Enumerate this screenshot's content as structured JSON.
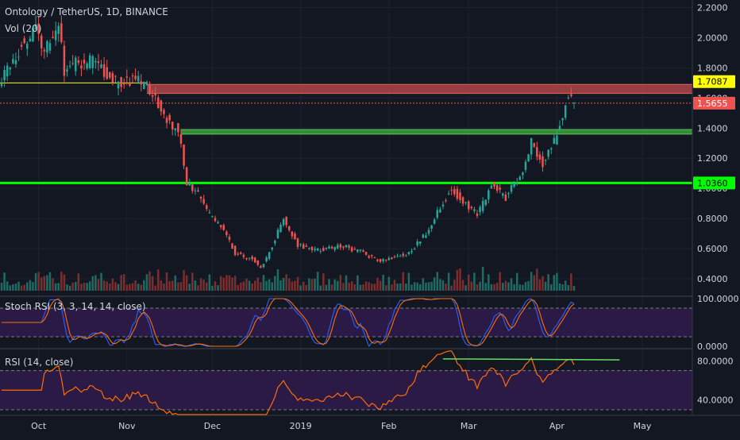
{
  "header": {
    "symbol_line": "Ontology / TetherUS, 1D, BINANCE",
    "volume_line": "Vol (20)"
  },
  "indicators": {
    "stoch_label": "Stoch RSI (3, 3, 14, 14, close)",
    "rsi_label": "RSI (14, close)"
  },
  "colors": {
    "bg": "#131722",
    "grid": "#1e2230",
    "axis_text": "#d1d4dc",
    "up": "#26a69a",
    "down": "#ef5350",
    "vol_up": "#1e6b64",
    "vol_down": "#7a2e2e",
    "resistance_band": "#b84a4a",
    "support_band": "#3e9e3e",
    "support_line": "#00ff00",
    "yellow_line": "#ffff00",
    "price_line": "#ef5350",
    "stoch_k": "#2962ff",
    "stoch_d": "#ff6d00",
    "osc_band": "#2a1a45",
    "rsi_line": "#ff6d00",
    "divergence_line": "#66dd66"
  },
  "chart_data": [
    {
      "type": "candlestick",
      "title": "Ontology / TetherUS, 1D, BINANCE",
      "y_scale": "linear",
      "ylim": [
        0.3,
        2.25
      ],
      "y_ticks": [
        "2.2000",
        "2.0000",
        "1.8000",
        "1.6000",
        "1.4000",
        "1.2000",
        "1.0000",
        "0.8000",
        "0.6000",
        "0.4000"
      ],
      "x_ticks": [
        "Oct",
        "Nov",
        "Dec",
        "2019",
        "Feb",
        "Mar",
        "Apr",
        "May"
      ],
      "x_tick_dates": [
        "2018-10-01",
        "2018-11-01",
        "2018-12-01",
        "2019-01-01",
        "2019-02-01",
        "2019-03-01",
        "2019-04-01",
        "2019-05-01"
      ],
      "x_range": [
        "2018-09-18",
        "2019-05-18"
      ],
      "anchor_closes": [
        [
          "2018-09-18",
          1.74
        ],
        [
          "2018-09-25",
          1.95
        ],
        [
          "2018-09-30",
          2.05
        ],
        [
          "2018-10-03",
          1.92
        ],
        [
          "2018-10-08",
          2.1
        ],
        [
          "2018-10-10",
          1.76
        ],
        [
          "2018-10-14",
          1.84
        ],
        [
          "2018-10-20",
          1.84
        ],
        [
          "2018-10-28",
          1.7
        ],
        [
          "2018-11-05",
          1.71
        ],
        [
          "2018-11-10",
          1.64
        ],
        [
          "2018-11-14",
          1.48
        ],
        [
          "2018-11-19",
          1.38
        ],
        [
          "2018-11-22",
          1.04
        ],
        [
          "2018-11-26",
          0.96
        ],
        [
          "2018-11-30",
          0.82
        ],
        [
          "2018-12-05",
          0.72
        ],
        [
          "2018-12-09",
          0.57
        ],
        [
          "2018-12-15",
          0.53
        ],
        [
          "2018-12-18",
          0.47
        ],
        [
          "2018-12-22",
          0.62
        ],
        [
          "2018-12-26",
          0.8
        ],
        [
          "2018-12-31",
          0.62
        ],
        [
          "2019-01-08",
          0.59
        ],
        [
          "2019-01-15",
          0.62
        ],
        [
          "2019-01-22",
          0.58
        ],
        [
          "2019-01-29",
          0.52
        ],
        [
          "2019-02-03",
          0.55
        ],
        [
          "2019-02-08",
          0.57
        ],
        [
          "2019-02-14",
          0.7
        ],
        [
          "2019-02-19",
          0.88
        ],
        [
          "2019-02-23",
          1.0
        ],
        [
          "2019-02-26",
          0.93
        ],
        [
          "2019-03-04",
          0.83
        ],
        [
          "2019-03-09",
          1.02
        ],
        [
          "2019-03-14",
          0.94
        ],
        [
          "2019-03-20",
          1.11
        ],
        [
          "2019-03-23",
          1.3
        ],
        [
          "2019-03-27",
          1.16
        ],
        [
          "2019-03-31",
          1.31
        ],
        [
          "2019-04-03",
          1.48
        ],
        [
          "2019-04-05",
          1.64
        ],
        [
          "2019-04-07",
          1.57
        ]
      ],
      "horizontal_levels": [
        {
          "name": "resistance-band",
          "from": 1.63,
          "to": 1.69
        },
        {
          "name": "support-band",
          "from": 1.36,
          "to": 1.39
        },
        {
          "name": "support-line",
          "value": 1.036
        },
        {
          "name": "yellow-line",
          "value": 1.7,
          "until": "2018-11-08"
        },
        {
          "name": "last-price-line",
          "value": 1.5655
        }
      ],
      "price_labels": [
        {
          "name": "label-yellow",
          "text": "1.7087",
          "value": 1.7087
        },
        {
          "name": "label-last",
          "text": "1.5655",
          "value": 1.5655
        },
        {
          "name": "label-support",
          "text": "1.0360",
          "value": 1.036
        }
      ]
    },
    {
      "type": "line",
      "title": "Stoch RSI (3, 3, 14, 14, close)",
      "ylim": [
        0,
        100
      ],
      "y_ticks": [
        "100.0000",
        "0.0000"
      ],
      "band": [
        20,
        80
      ],
      "series": [
        {
          "name": "K",
          "color": "#2962ff"
        },
        {
          "name": "D",
          "color": "#ff6d00"
        }
      ]
    },
    {
      "type": "line",
      "title": "RSI (14, close)",
      "ylim": [
        25,
        90
      ],
      "y_ticks": [
        "80.0000",
        "40.0000"
      ],
      "band": [
        30,
        70
      ],
      "divergence": {
        "from": [
          "2019-02-20",
          82
        ],
        "to": [
          "2019-04-23",
          81
        ]
      }
    }
  ]
}
